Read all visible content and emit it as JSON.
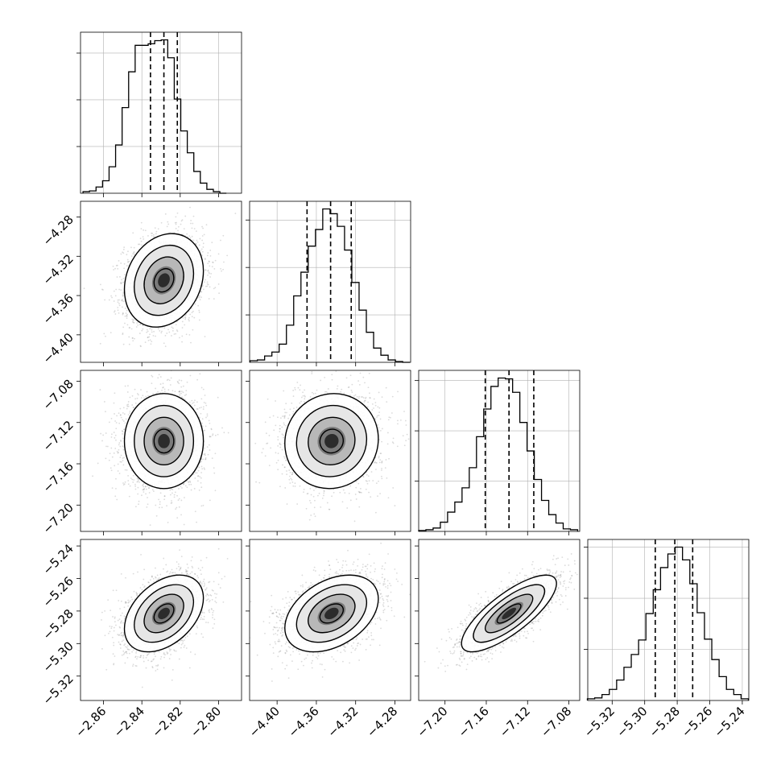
{
  "chart_data": {
    "type": "corner",
    "title": "",
    "grid": true,
    "parameters": [
      {
        "range": [
          -2.872,
          -2.788
        ],
        "ticks": [
          -2.86,
          -2.84,
          -2.82,
          -2.8
        ],
        "tick_labels": [
          "−2.86",
          "−2.84",
          "−2.82",
          "−2.80"
        ],
        "quantiles": [
          -2.8355,
          -2.8285,
          -2.8215
        ],
        "hist_centers": [
          -2.869,
          -2.8656,
          -2.8622,
          -2.8588,
          -2.8554,
          -2.852,
          -2.8486,
          -2.8452,
          -2.8418,
          -2.8384,
          -2.835,
          -2.8316,
          -2.8282,
          -2.8248,
          -2.8214,
          -2.818,
          -2.8146,
          -2.8112,
          -2.8078,
          -2.8044,
          -2.801,
          -2.7976
        ],
        "hist_counts": [
          2,
          3,
          8,
          16,
          34,
          62,
          110,
          156,
          190,
          190,
          192,
          196,
          197,
          174,
          121,
          80,
          52,
          28,
          13,
          5,
          2,
          0
        ]
      },
      {
        "range": [
          -4.428,
          -4.264
        ],
        "ticks": [
          -4.4,
          -4.36,
          -4.32,
          -4.28
        ],
        "tick_labels": [
          "−4.40",
          "−4.36",
          "−4.32",
          "−4.28"
        ],
        "quantiles": [
          -4.3695,
          -4.3455,
          -4.3245
        ],
        "hist_centers": [
          -4.4238,
          -4.4164,
          -4.409,
          -4.4016,
          -4.3942,
          -4.3868,
          -4.3794,
          -4.372,
          -4.3646,
          -4.3572,
          -4.3498,
          -4.3424,
          -4.335,
          -4.3276,
          -4.3202,
          -4.3128,
          -4.3054,
          -4.298,
          -4.2906,
          -4.2832,
          -4.2758,
          -4.2684
        ],
        "hist_counts": [
          2,
          3,
          8,
          13,
          23,
          47,
          84,
          114,
          147,
          168,
          194,
          188,
          172,
          142,
          101,
          66,
          38,
          18,
          9,
          3,
          1,
          0
        ]
      },
      {
        "range": [
          -7.2255,
          -7.0695
        ],
        "ticks": [
          -7.2,
          -7.16,
          -7.12,
          -7.08
        ],
        "tick_labels": [
          "−7.20",
          "−7.16",
          "−7.12",
          "−7.08"
        ],
        "quantiles": [
          -7.161,
          -7.138,
          -7.114
        ],
        "hist_centers": [
          -7.222,
          -7.215,
          -7.208,
          -7.201,
          -7.194,
          -7.187,
          -7.18,
          -7.173,
          -7.166,
          -7.159,
          -7.152,
          -7.145,
          -7.138,
          -7.131,
          -7.124,
          -7.117,
          -7.11,
          -7.103,
          -7.096,
          -7.089,
          -7.082,
          -7.075
        ],
        "hist_counts": [
          1,
          2,
          4,
          11,
          23,
          35,
          52,
          76,
          113,
          146,
          173,
          183,
          182,
          166,
          130,
          96,
          62,
          37,
          20,
          10,
          3,
          2
        ]
      },
      {
        "range": [
          -5.335,
          -5.236
        ],
        "ticks": [
          -5.32,
          -5.3,
          -5.28,
          -5.26,
          -5.24
        ],
        "tick_labels": [
          "−5.32",
          "−5.30",
          "−5.28",
          "−5.26",
          "−5.24"
        ],
        "quantiles": [
          -5.2935,
          -5.2815,
          -5.2705
        ],
        "hist_centers": [
          -5.333,
          -5.3285,
          -5.324,
          -5.3195,
          -5.315,
          -5.3105,
          -5.306,
          -5.3015,
          -5.297,
          -5.2925,
          -5.288,
          -5.2835,
          -5.279,
          -5.2745,
          -5.27,
          -5.2655,
          -5.261,
          -5.2565,
          -5.252,
          -5.2475,
          -5.243,
          -5.2385
        ],
        "hist_counts": [
          2,
          3,
          7,
          13,
          24,
          39,
          54,
          71,
          102,
          130,
          156,
          172,
          180,
          165,
          137,
          103,
          72,
          48,
          28,
          13,
          7,
          2
        ]
      }
    ],
    "pairs": [
      {
        "x_param": 0,
        "y_param": 1,
        "center": [
          -2.8285,
          -4.3445
        ],
        "sigma": [
          0.0103,
          0.0238
        ],
        "correlation": 0.2
      },
      {
        "x_param": 0,
        "y_param": 2,
        "center": [
          -2.8285,
          -7.138
        ],
        "sigma": [
          0.0103,
          0.023
        ],
        "correlation": 0.0
      },
      {
        "x_param": 1,
        "y_param": 2,
        "center": [
          -4.3445,
          -7.138
        ],
        "sigma": [
          0.0238,
          0.023
        ],
        "correlation": 0.05
      },
      {
        "x_param": 0,
        "y_param": 3,
        "center": [
          -2.8285,
          -5.2815
        ],
        "sigma": [
          0.0103,
          0.0118
        ],
        "correlation": 0.4
      },
      {
        "x_param": 1,
        "y_param": 3,
        "center": [
          -4.3445,
          -5.2815
        ],
        "sigma": [
          0.0238,
          0.0118
        ],
        "correlation": 0.38
      },
      {
        "x_param": 2,
        "y_param": 3,
        "center": [
          -7.138,
          -5.2815
        ],
        "sigma": [
          0.023,
          0.0118
        ],
        "correlation": 0.78
      }
    ],
    "contour_levels_sigma": [
      0.5,
      1.0,
      1.5,
      2.0
    ],
    "colors": {
      "line": "#000000",
      "grid": "#b0b0b0",
      "points": "#7f7f7f"
    }
  }
}
